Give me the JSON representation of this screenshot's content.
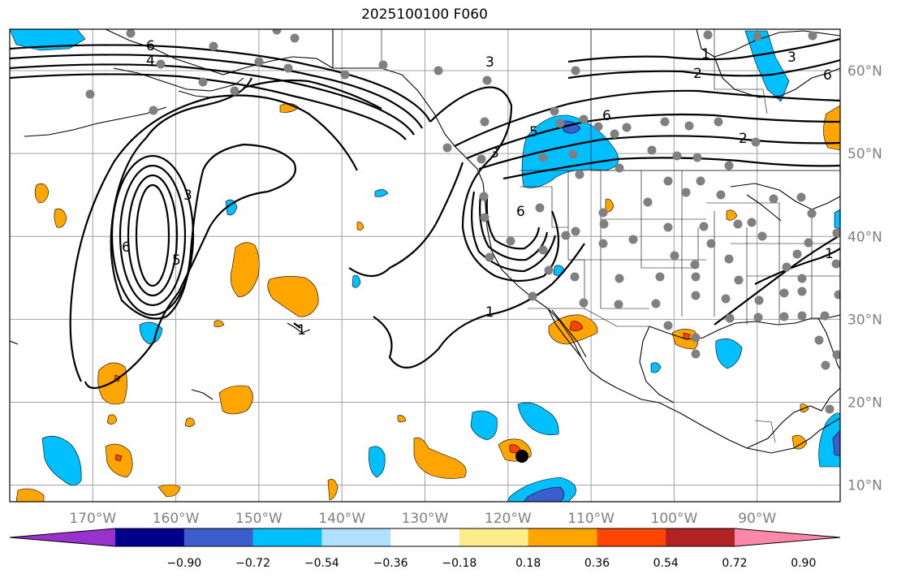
{
  "title": "2025100100 F060",
  "map": {
    "projection": "cylindrical lat-lon",
    "lon_range": [
      -180,
      -80
    ],
    "lat_range": [
      8,
      65
    ],
    "gridlines": true,
    "lon_labels": [
      "170°W",
      "160°W",
      "150°W",
      "140°W",
      "130°W",
      "120°W",
      "110°W",
      "100°W",
      "90°W"
    ],
    "lat_labels": [
      "10°N",
      "20°N",
      "30°N",
      "40°N",
      "50°N",
      "60°N"
    ],
    "land_outline_color": "#000000",
    "grid_color": "#a0a0a0",
    "station_marker_color": "#808080",
    "highlight_marker": {
      "lon": -119.8,
      "lat": 13.5,
      "color": "#000000"
    }
  },
  "contours": {
    "color": "#000000",
    "labels": [
      "6",
      "4",
      "3",
      "1",
      "2",
      "6",
      "5",
      "3",
      "1",
      "2",
      "6",
      "3",
      "6",
      "3",
      "5",
      "1",
      "6",
      "1"
    ]
  },
  "colorbar": {
    "ticks": [
      "−0.90",
      "−0.72",
      "−0.54",
      "−0.36",
      "−0.18",
      "0.18",
      "0.36",
      "0.54",
      "0.72",
      "0.90"
    ],
    "colors": [
      "#9932cc",
      "#00008b",
      "#3a5fcd",
      "#00bfff",
      "#b0e2ff",
      "#ffffff",
      "#ffec8b",
      "#ffa500",
      "#ff4500",
      "#b22222",
      "#ff88aa"
    ]
  }
}
